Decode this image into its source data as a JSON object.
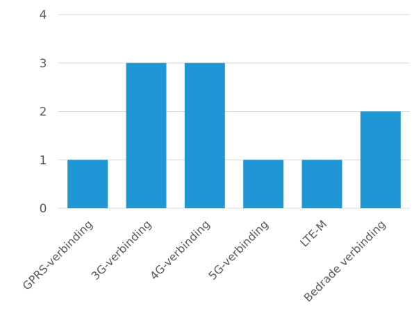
{
  "chart_data": {
    "type": "bar",
    "categories": [
      "GPRS-verbinding",
      "3G-verbinding",
      "4G-verbinding",
      "5G-verbinding",
      "LTE-M",
      "Bedrade verbinding"
    ],
    "values": [
      1,
      3,
      3,
      1,
      1,
      2
    ],
    "ylim": [
      0,
      4
    ],
    "yticks": [
      0,
      1,
      2,
      3,
      4
    ],
    "grid": true,
    "bar_color": "#1f97d4",
    "grid_color": "#d9d9d9",
    "label_color": "#595959"
  }
}
